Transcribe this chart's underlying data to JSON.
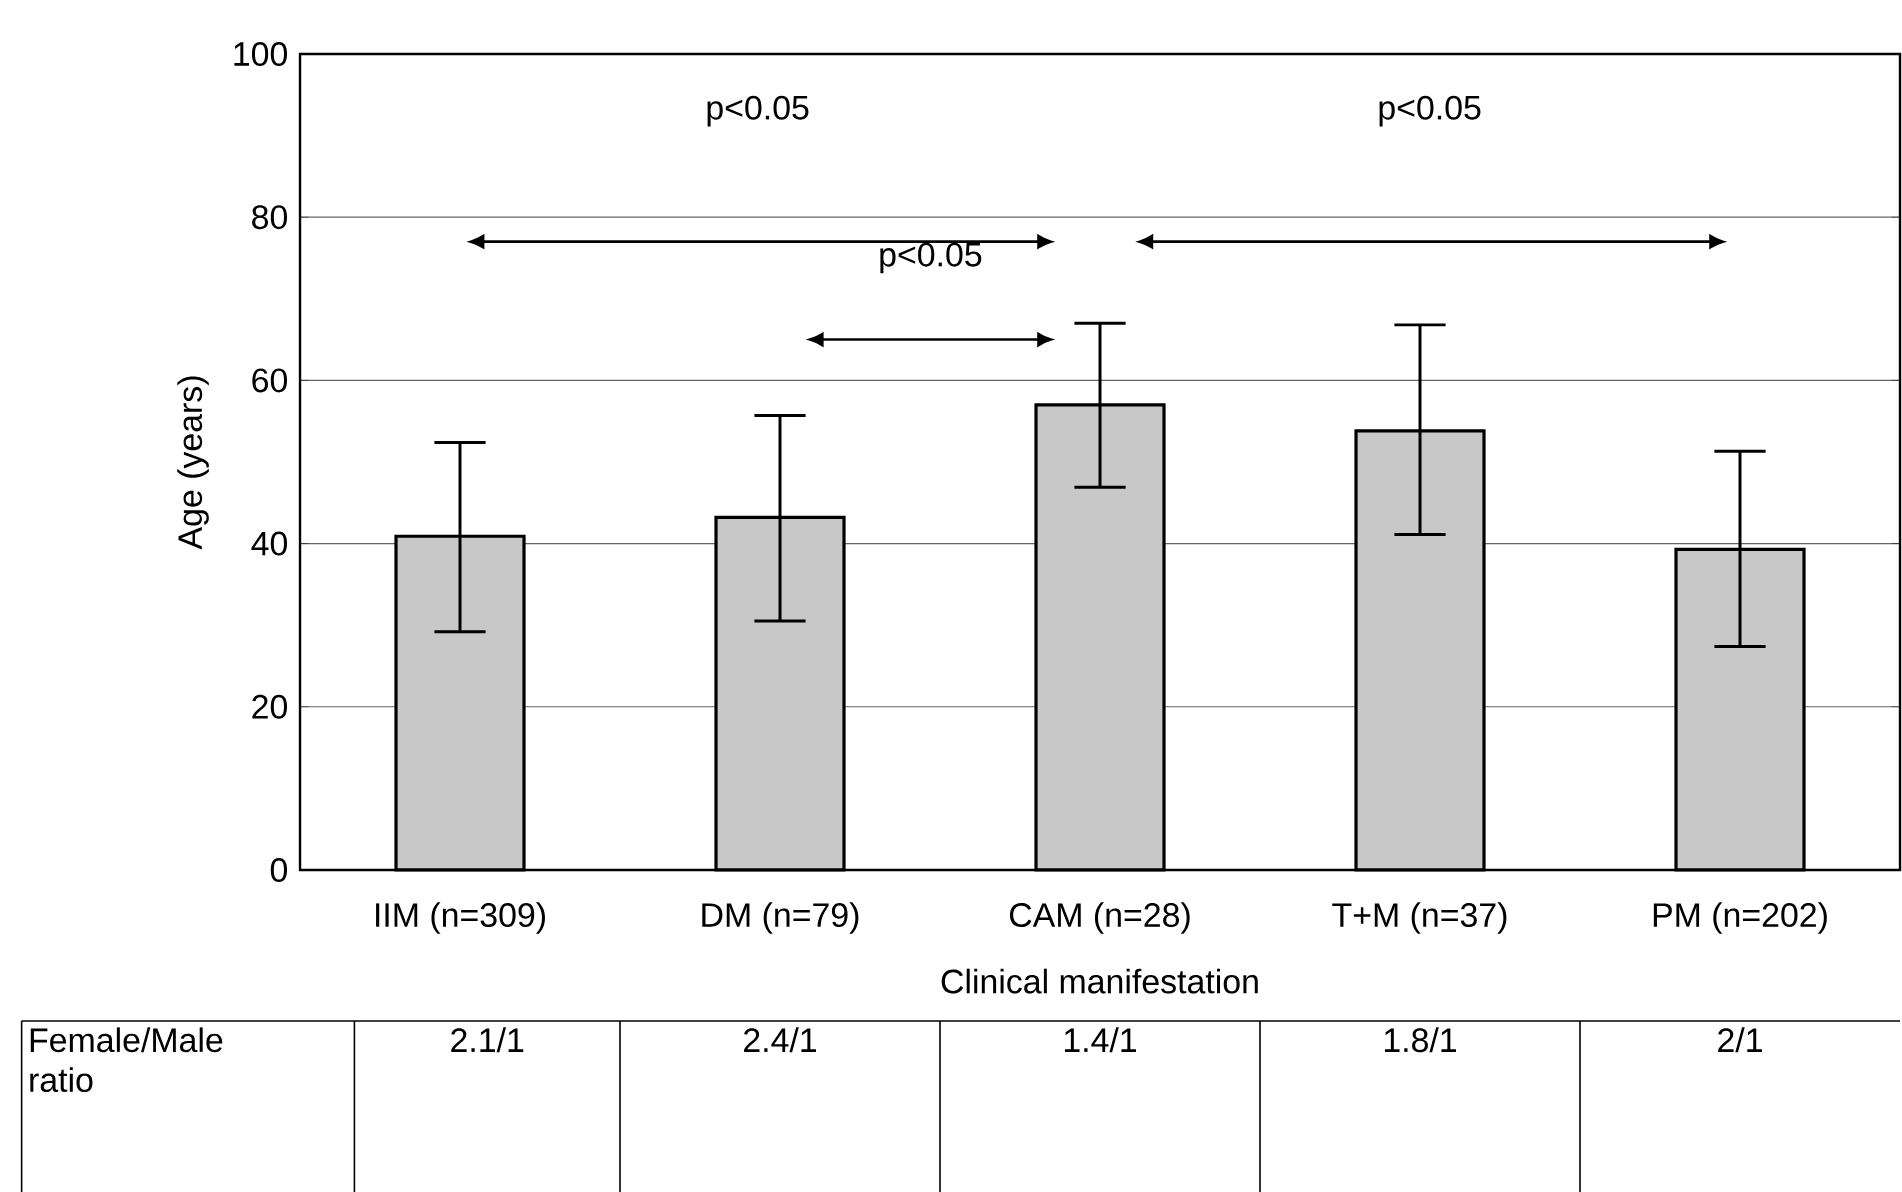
{
  "chart_data": {
    "type": "bar",
    "xlabel": "Clinical manifestation",
    "ylabel": "Age (years)",
    "categories": [
      "IIM (n=309)",
      "DM (n=79)",
      "CAM (n=28)",
      "T+M (n=37)",
      "PM (n=202)"
    ],
    "values": [
      40.9,
      43.2,
      57.0,
      53.8,
      39.3
    ],
    "errors": [
      [
        29.2,
        52.4
      ],
      [
        30.5,
        55.7
      ],
      [
        46.9,
        67.0
      ],
      [
        41.1,
        66.8
      ],
      [
        27.4,
        51.3
      ]
    ],
    "color": "#c8c8c8",
    "ylim": [
      0,
      100
    ],
    "yticks": [
      0,
      20,
      40,
      60,
      80,
      100
    ],
    "grid": "y",
    "annotations": [
      "p<0.05",
      "p<0.05",
      "p<0.05",
      "Female/Male ratio",
      "2.1/1",
      "2.4/1",
      "1.4/1",
      "1.8/1",
      "2/1"
    ]
  }
}
